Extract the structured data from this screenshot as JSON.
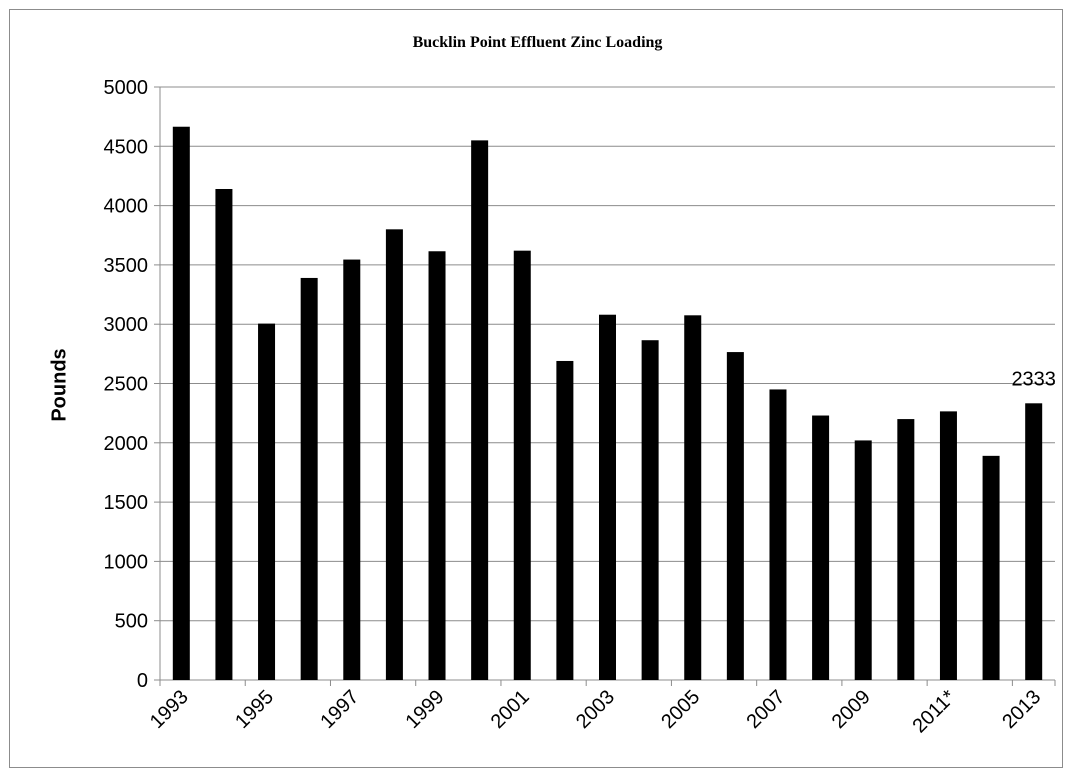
{
  "chart_data": {
    "type": "bar",
    "title": "Bucklin Point Effluent Zinc Loading",
    "xlabel": "",
    "ylabel": "Pounds",
    "categories": [
      "1993",
      "1994",
      "1995",
      "1996",
      "1997",
      "1998",
      "1999",
      "2000",
      "2001",
      "2002",
      "2003",
      "2004",
      "2005",
      "2006",
      "2007",
      "2008",
      "2009",
      "2010",
      "2011*",
      "2012",
      "2013"
    ],
    "tick_labels": [
      "1993",
      "1995",
      "1997",
      "1999",
      "2001",
      "2003",
      "2005",
      "2007",
      "2009",
      "2011*",
      "2013"
    ],
    "tick_label_indices": [
      0,
      2,
      4,
      6,
      8,
      10,
      12,
      14,
      16,
      18,
      20
    ],
    "values": [
      4665,
      4140,
      3005,
      3390,
      3545,
      3800,
      3615,
      4550,
      3620,
      2690,
      3080,
      2865,
      3075,
      2765,
      2450,
      2230,
      2020,
      2200,
      2265,
      1890,
      2333
    ],
    "ylim": [
      0,
      5000
    ],
    "yticks": [
      0,
      500,
      1000,
      1500,
      2000,
      2500,
      3000,
      3500,
      4000,
      4500,
      5000
    ],
    "grid": true,
    "legend": "none",
    "bar_color": "#000000",
    "data_labels": [
      {
        "index": 20,
        "text": "2333"
      }
    ]
  }
}
